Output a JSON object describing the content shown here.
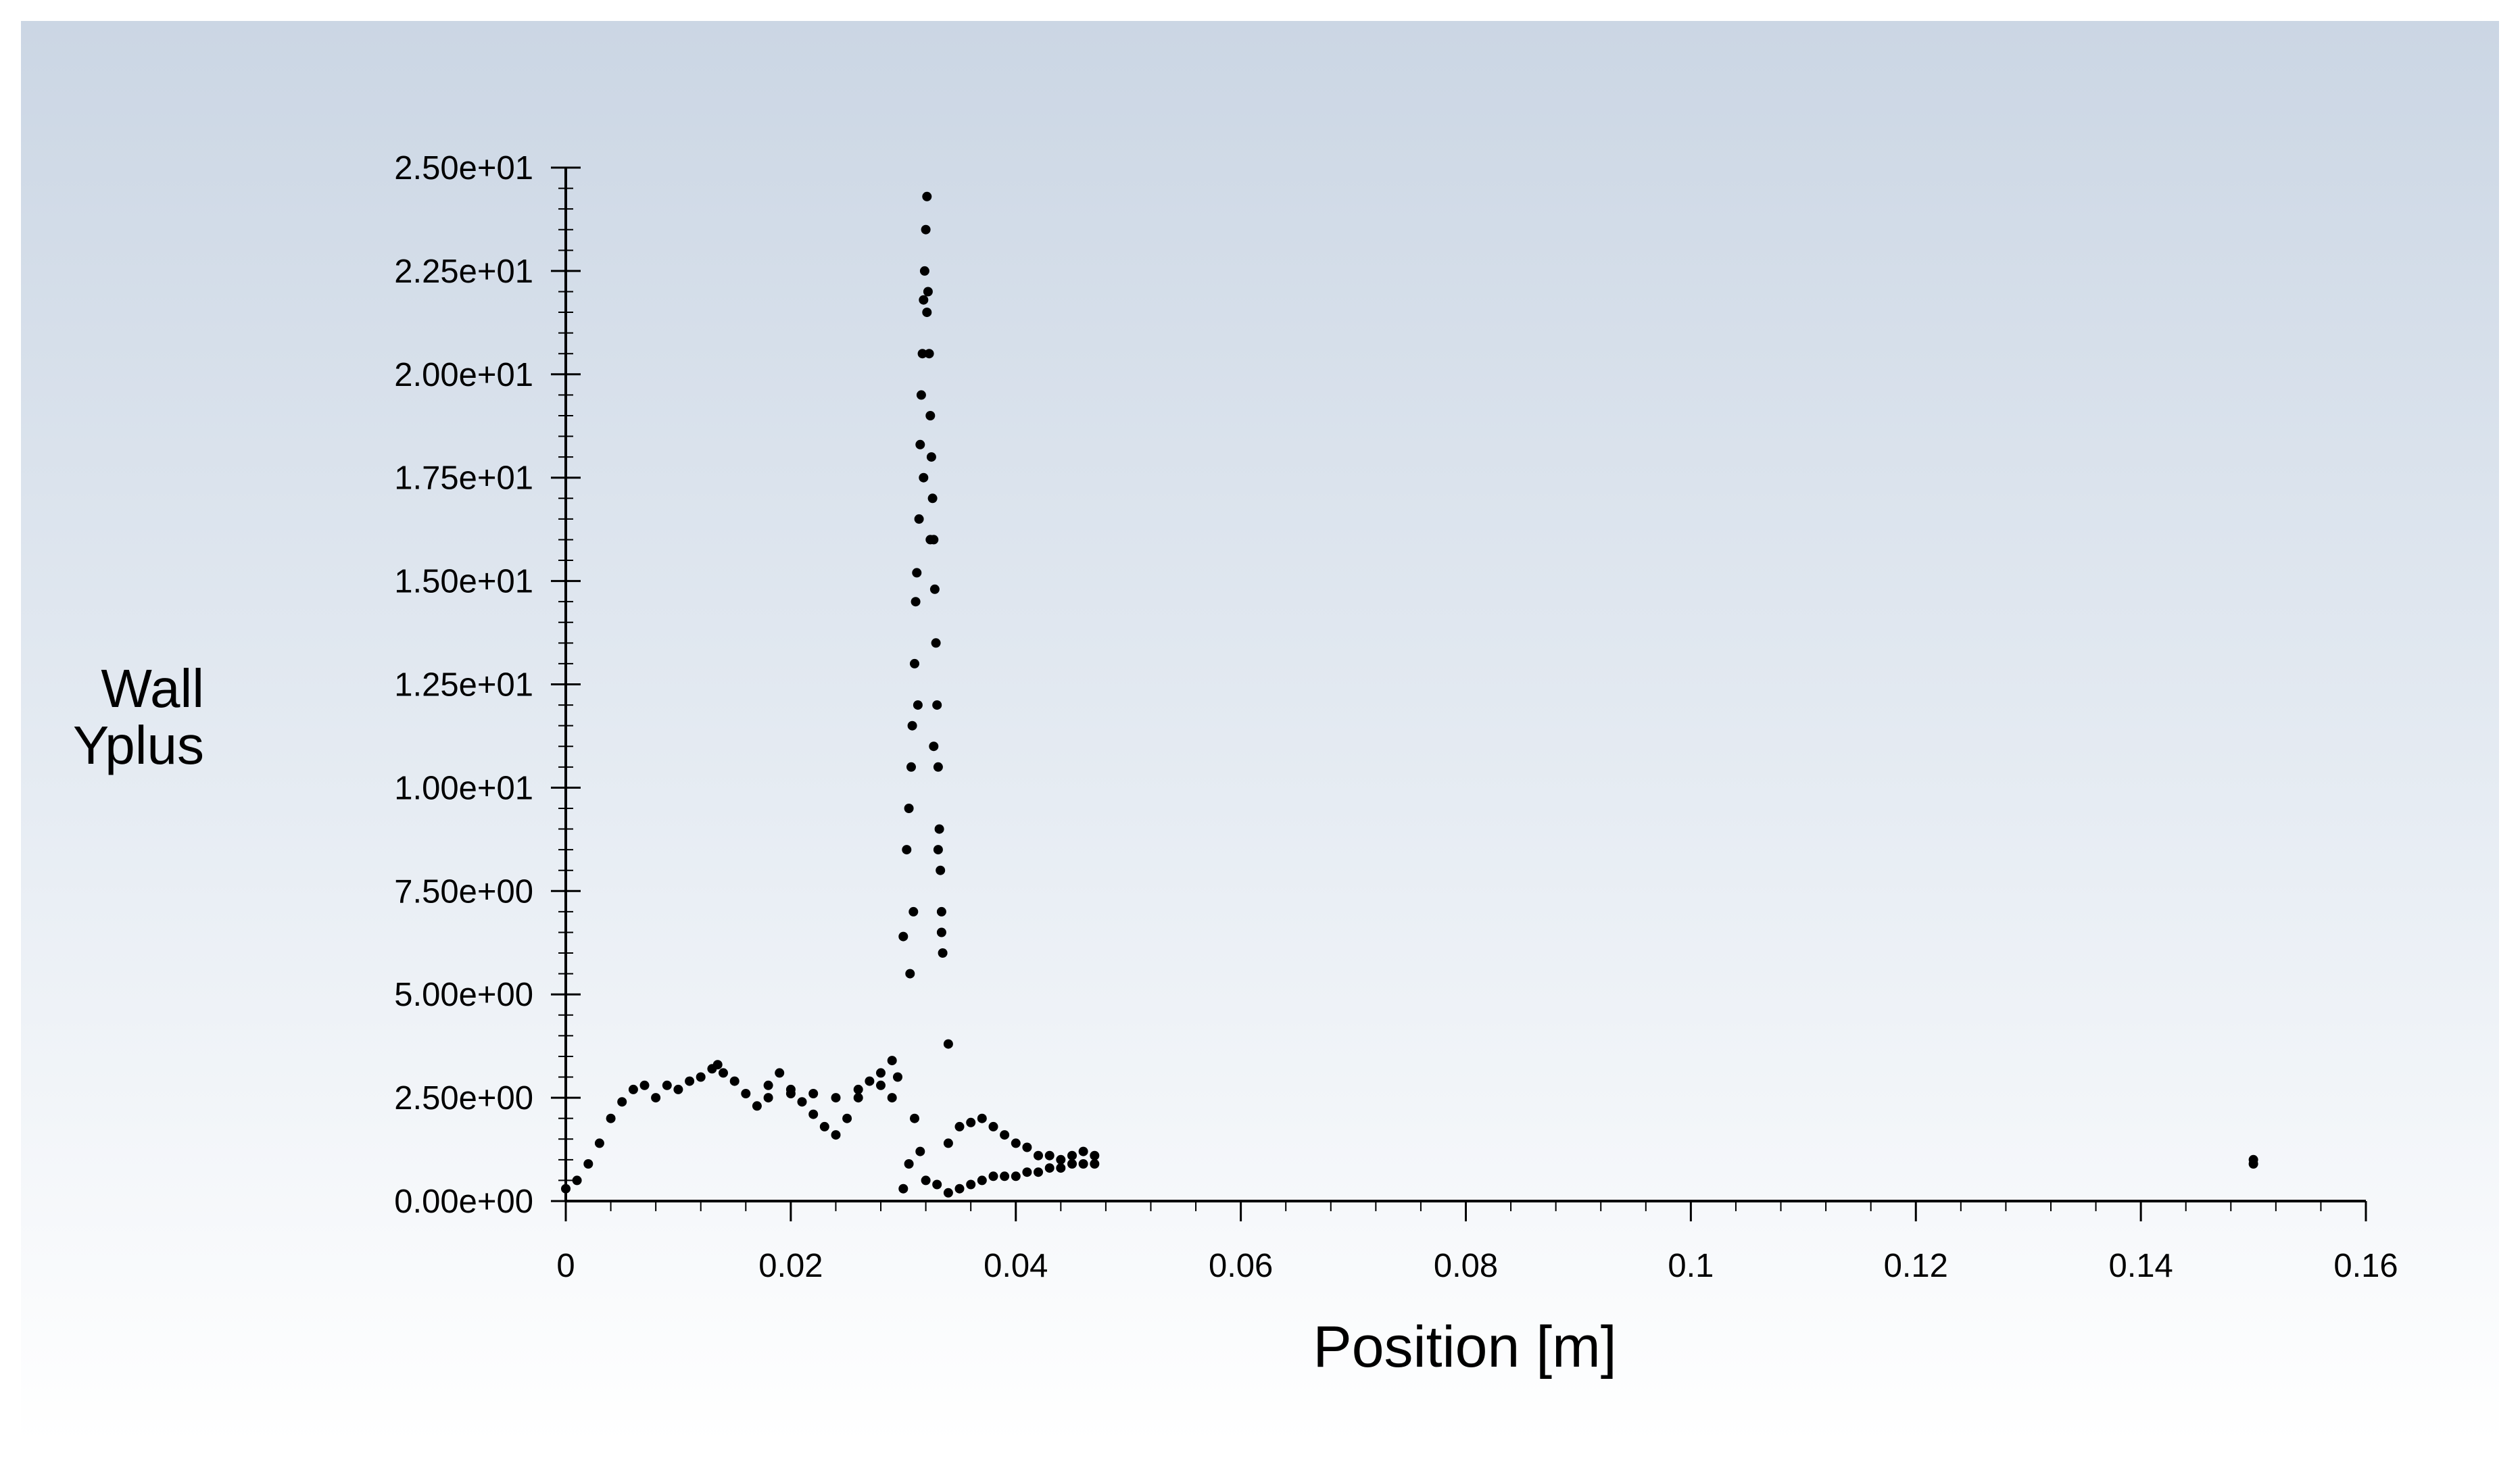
{
  "chart_data": {
    "type": "scatter",
    "title": "",
    "xlabel": "Position [m]",
    "ylabel_lines": [
      "Wall",
      "Yplus"
    ],
    "xlim": [
      0,
      0.16
    ],
    "ylim": [
      0,
      25
    ],
    "x_ticks": [
      {
        "value": 0,
        "label": "0"
      },
      {
        "value": 0.02,
        "label": "0.02"
      },
      {
        "value": 0.04,
        "label": "0.04"
      },
      {
        "value": 0.06,
        "label": "0.06"
      },
      {
        "value": 0.08,
        "label": "0.08"
      },
      {
        "value": 0.1,
        "label": "0.1"
      },
      {
        "value": 0.12,
        "label": "0.12"
      },
      {
        "value": 0.14,
        "label": "0.14"
      },
      {
        "value": 0.16,
        "label": "0.16"
      }
    ],
    "y_ticks": [
      {
        "value": 0,
        "label": "0.00e+00"
      },
      {
        "value": 2.5,
        "label": "2.50e+00"
      },
      {
        "value": 5,
        "label": "5.00e+00"
      },
      {
        "value": 7.5,
        "label": "7.50e+00"
      },
      {
        "value": 10,
        "label": "1.00e+01"
      },
      {
        "value": 12.5,
        "label": "1.25e+01"
      },
      {
        "value": 15,
        "label": "1.50e+01"
      },
      {
        "value": 17.5,
        "label": "1.75e+01"
      },
      {
        "value": 20,
        "label": "2.00e+01"
      },
      {
        "value": 22.5,
        "label": "2.25e+01"
      },
      {
        "value": 25,
        "label": "2.50e+01"
      }
    ],
    "grid": false,
    "legend": "none",
    "marker_color": "#000000",
    "series": [
      {
        "points": [
          [
            0.0,
            0.3
          ],
          [
            0.001,
            0.5
          ],
          [
            0.002,
            0.9
          ],
          [
            0.003,
            1.4
          ],
          [
            0.004,
            2.0
          ],
          [
            0.005,
            2.4
          ],
          [
            0.006,
            2.7
          ],
          [
            0.007,
            2.8
          ],
          [
            0.008,
            2.5
          ],
          [
            0.009,
            2.8
          ],
          [
            0.01,
            2.7
          ],
          [
            0.011,
            2.9
          ],
          [
            0.012,
            3.0
          ],
          [
            0.013,
            3.2
          ],
          [
            0.0135,
            3.3
          ],
          [
            0.014,
            3.1
          ],
          [
            0.015,
            2.9
          ],
          [
            0.016,
            2.6
          ],
          [
            0.017,
            2.3
          ],
          [
            0.018,
            2.8
          ],
          [
            0.019,
            3.1
          ],
          [
            0.02,
            2.7
          ],
          [
            0.021,
            2.4
          ],
          [
            0.022,
            2.1
          ],
          [
            0.023,
            1.8
          ],
          [
            0.024,
            1.6
          ],
          [
            0.025,
            2.0
          ],
          [
            0.026,
            2.5
          ],
          [
            0.027,
            2.9
          ],
          [
            0.028,
            3.1
          ],
          [
            0.029,
            3.4
          ],
          [
            0.0295,
            3.0
          ],
          [
            0.03,
            6.4
          ],
          [
            0.018,
            2.5
          ],
          [
            0.02,
            2.6
          ],
          [
            0.022,
            2.6
          ],
          [
            0.024,
            2.5
          ],
          [
            0.026,
            2.7
          ],
          [
            0.028,
            2.8
          ],
          [
            0.029,
            2.5
          ],
          [
            0.03,
            0.3
          ],
          [
            0.0305,
            0.9
          ],
          [
            0.031,
            2.0
          ],
          [
            0.0315,
            1.2
          ],
          [
            0.032,
            0.5
          ],
          [
            0.033,
            0.4
          ],
          [
            0.034,
            1.4
          ],
          [
            0.035,
            1.8
          ],
          [
            0.036,
            1.9
          ],
          [
            0.037,
            2.0
          ],
          [
            0.038,
            1.8
          ],
          [
            0.039,
            1.6
          ],
          [
            0.04,
            1.4
          ],
          [
            0.041,
            1.3
          ],
          [
            0.042,
            1.1
          ],
          [
            0.043,
            1.1
          ],
          [
            0.044,
            1.0
          ],
          [
            0.045,
            1.1
          ],
          [
            0.046,
            1.2
          ],
          [
            0.047,
            1.1
          ],
          [
            0.034,
            0.2
          ],
          [
            0.035,
            0.3
          ],
          [
            0.036,
            0.4
          ],
          [
            0.037,
            0.5
          ],
          [
            0.038,
            0.6
          ],
          [
            0.039,
            0.6
          ],
          [
            0.04,
            0.6
          ],
          [
            0.041,
            0.7
          ],
          [
            0.042,
            0.7
          ],
          [
            0.043,
            0.8
          ],
          [
            0.044,
            0.8
          ],
          [
            0.045,
            0.9
          ],
          [
            0.046,
            0.9
          ],
          [
            0.047,
            0.9
          ],
          [
            0.0303,
            8.5
          ],
          [
            0.0305,
            9.5
          ],
          [
            0.0307,
            10.5
          ],
          [
            0.0308,
            11.5
          ],
          [
            0.031,
            13.0
          ],
          [
            0.0311,
            14.5
          ],
          [
            0.0312,
            15.2
          ],
          [
            0.0314,
            16.5
          ],
          [
            0.0315,
            18.3
          ],
          [
            0.0316,
            19.5
          ],
          [
            0.0317,
            20.5
          ],
          [
            0.0318,
            21.8
          ],
          [
            0.0319,
            22.5
          ],
          [
            0.032,
            23.5
          ],
          [
            0.0321,
            24.3
          ],
          [
            0.0322,
            22.0
          ],
          [
            0.0323,
            20.5
          ],
          [
            0.0324,
            19.0
          ],
          [
            0.0325,
            18.0
          ],
          [
            0.0326,
            17.0
          ],
          [
            0.0327,
            16.0
          ],
          [
            0.0328,
            14.8
          ],
          [
            0.0329,
            13.5
          ],
          [
            0.033,
            12.0
          ],
          [
            0.0331,
            10.5
          ],
          [
            0.0332,
            9.0
          ],
          [
            0.0333,
            8.0
          ],
          [
            0.0334,
            7.0
          ],
          [
            0.0335,
            6.0
          ],
          [
            0.034,
            3.8
          ],
          [
            0.0306,
            5.5
          ],
          [
            0.0309,
            7.0
          ],
          [
            0.0313,
            12.0
          ],
          [
            0.0318,
            17.5
          ],
          [
            0.0321,
            21.5
          ],
          [
            0.0324,
            16.0
          ],
          [
            0.0327,
            11.0
          ],
          [
            0.0331,
            8.5
          ],
          [
            0.0334,
            6.5
          ],
          [
            0.15,
            0.9
          ],
          [
            0.15,
            1.0
          ]
        ]
      }
    ]
  }
}
